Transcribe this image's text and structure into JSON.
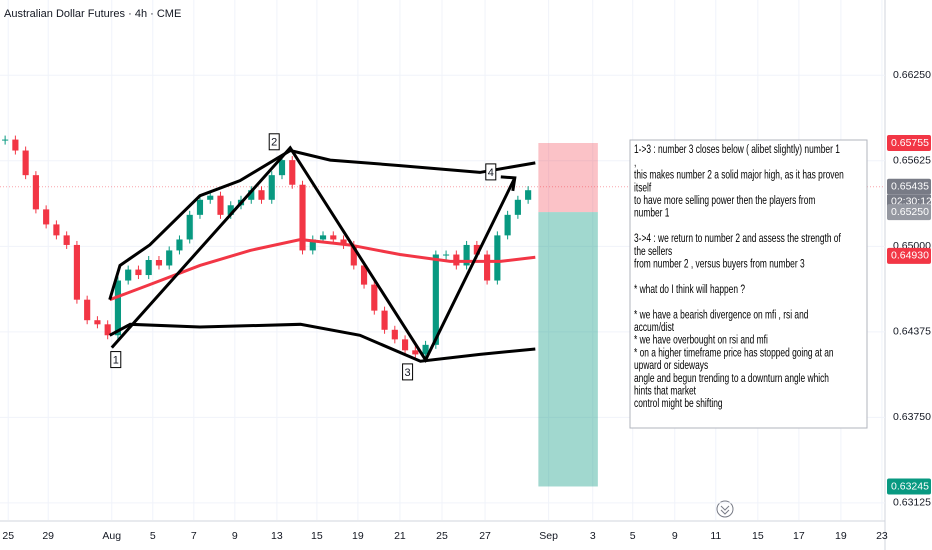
{
  "title": "Australian Dollar Futures · 4h · CME",
  "chart_data": {
    "type": "candlestick",
    "xlim": [
      0,
      86.3
    ],
    "ylim": [
      0.63,
      0.668
    ],
    "yticks": [
      {
        "value": 0.6625,
        "label": "0.66250"
      },
      {
        "value": 0.65625,
        "label": "0.65625"
      },
      {
        "value": 0.65,
        "label": "0.65000"
      },
      {
        "value": 0.64375,
        "label": "0.64375"
      },
      {
        "value": 0.6375,
        "label": "0.63750"
      },
      {
        "value": 0.63125,
        "label": "0.63125"
      }
    ],
    "xticks": [
      {
        "value": 0.8,
        "label": "25"
      },
      {
        "value": 4.7,
        "label": "29"
      },
      {
        "value": 10.9,
        "label": "Aug"
      },
      {
        "value": 14.9,
        "label": "5"
      },
      {
        "value": 18.9,
        "label": "7"
      },
      {
        "value": 22.9,
        "label": "9"
      },
      {
        "value": 27,
        "label": "13"
      },
      {
        "value": 30.9,
        "label": "15"
      },
      {
        "value": 34.9,
        "label": "19"
      },
      {
        "value": 39,
        "label": "21"
      },
      {
        "value": 43.1,
        "label": "25"
      },
      {
        "value": 47.3,
        "label": "27"
      },
      {
        "value": 53.5,
        "label": "Sep"
      },
      {
        "value": 57.8,
        "label": "3"
      },
      {
        "value": 61.7,
        "label": "5"
      },
      {
        "value": 65.8,
        "label": "9"
      },
      {
        "value": 69.8,
        "label": "11"
      },
      {
        "value": 73.9,
        "label": "15"
      },
      {
        "value": 77.9,
        "label": "17"
      },
      {
        "value": 82,
        "label": "19"
      },
      {
        "value": 86,
        "label": "23"
      }
    ],
    "x": [
      0.5,
      1.5,
      2.5,
      3.5,
      4.5,
      5.5,
      6.5,
      7.5,
      8.5,
      9.5,
      10.5,
      11.5,
      12.5,
      13.5,
      14.5,
      15.5,
      16.5,
      17.5,
      18.5,
      19.5,
      20.5,
      21.5,
      22.5,
      23.5,
      24.5,
      25.5,
      26.5,
      27.5,
      28.5,
      29.5,
      30.5,
      31.5,
      32.5,
      33.5,
      34.5,
      35.5,
      36.5,
      37.5,
      38.5,
      39.5,
      40.5,
      41.5,
      42.5,
      43.5,
      44.5,
      45.5,
      46.5,
      47.5,
      48.5,
      49.5,
      50.5,
      51.5
    ],
    "values": [
      0.6578,
      0.657,
      0.6552,
      0.6527,
      0.6516,
      0.6508,
      0.6501,
      0.6461,
      0.6446,
      0.6443,
      0.6435,
      0.6475,
      0.6483,
      0.6479,
      0.649,
      0.6486,
      0.6497,
      0.6505,
      0.6523,
      0.6534,
      0.6537,
      0.6523,
      0.653,
      0.6534,
      0.6541,
      0.6534,
      0.6552,
      0.6563,
      0.6545,
      0.6497,
      0.6505,
      0.6508,
      0.6505,
      0.6501,
      0.6486,
      0.6472,
      0.6453,
      0.6439,
      0.6432,
      0.6424,
      0.6421,
      0.6428,
      0.6494,
      0.6494,
      0.6486,
      0.6501,
      0.6494,
      0.6475,
      0.6508,
      0.6523,
      0.6534,
      0.6541
    ],
    "up_color": "#089981",
    "down_color": "#f23645",
    "overlays": [
      {
        "color": "#f23645",
        "x": [
          10.7,
          14.6,
          19.5,
          24.4,
          29.3,
          34.1,
          39,
          43.9,
          48.8,
          52.2
        ],
        "values": [
          0.6461,
          0.6472,
          0.6486,
          0.6497,
          0.6505,
          0.6501,
          0.6494,
          0.6489,
          0.6489,
          0.6492
        ]
      },
      {
        "color": "#000000",
        "x": [
          10.7,
          11.7,
          14.6,
          19.5,
          23.4,
          28.3,
          32.2,
          39,
          46.8,
          52.2
        ],
        "values": [
          0.6461,
          0.6486,
          0.6501,
          0.6537,
          0.6548,
          0.657,
          0.6563,
          0.6559,
          0.6554,
          0.6561
        ]
      },
      {
        "color": "#000000",
        "x": [
          10.7,
          12.7,
          19.5,
          29.3,
          35.1,
          41,
          46.8,
          52.2
        ],
        "values": [
          0.6435,
          0.6443,
          0.6441,
          0.6443,
          0.6435,
          0.6416,
          0.6421,
          0.6425
        ]
      }
    ],
    "zigzag": {
      "x": [
        10.9,
        28.3,
        41.5,
        50.2
      ],
      "values": [
        0.6426,
        0.6572,
        0.6417,
        0.655
      ],
      "labels": [
        "1",
        "2",
        "3",
        "4"
      ]
    },
    "position": {
      "x": [
        52.5,
        58.3
      ],
      "stop": 0.65755,
      "entry": 0.6525,
      "target": 0.63245
    },
    "badges": [
      {
        "value": 0.65755,
        "label": "0.65755",
        "color": "#f23645"
      },
      {
        "value": 0.65435,
        "label": "0.65435",
        "color": "#787b86",
        "countdown": "02:30:12"
      },
      {
        "value": 0.6525,
        "label": "0.65250",
        "color": "#9598a1"
      },
      {
        "value": 0.6493,
        "label": "0.64930",
        "color": "#f23645"
      },
      {
        "value": 0.63245,
        "label": "0.63245",
        "color": "#089981"
      }
    ]
  },
  "annotation": {
    "paragraphs": [
      [
        "1->3 : number 3 closes below ( alibet slightly) number 1",
        ",",
        "this makes number 2 a solid major high, as it has proven",
        "itself",
        "to have more selling power then the players from",
        "number 1"
      ],
      [
        "3->4 : we return to number 2 and assess the strength of",
        "the sellers",
        "from number 2 , versus buyers from number 3"
      ],
      [
        "* what do I think will happen ?"
      ],
      [
        "* we have a bearish divergence on mfi , rsi and",
        "accum/dist",
        "* we have overbought on rsi and mfi",
        "* on a higher timeframe price has stopped going at an",
        "upward or sideways",
        "angle and begun trending to a downturn angle which",
        "hints that market",
        "control might be shifting"
      ]
    ]
  }
}
